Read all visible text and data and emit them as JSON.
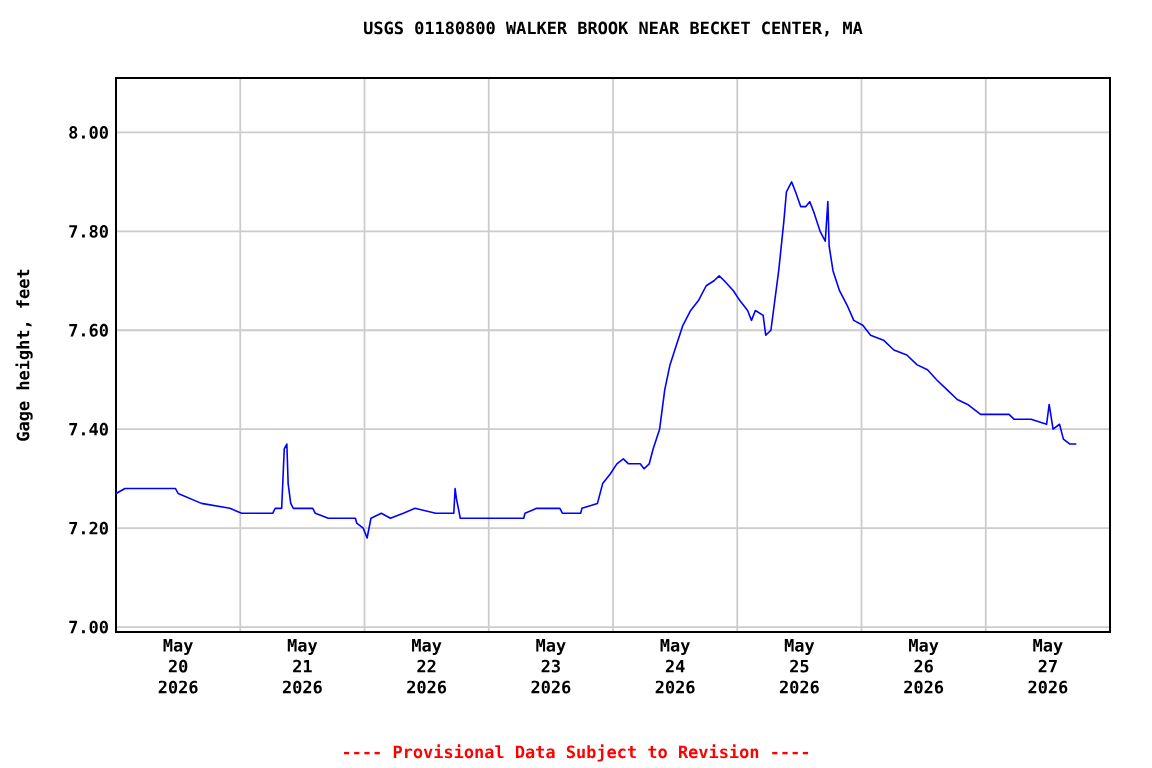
{
  "chart_data": {
    "type": "line",
    "title": "USGS 01180800 WALKER BROOK NEAR BECKET CENTER, MA",
    "ylabel": "Gage height, feet",
    "annotations": [
      "---- Provisional Data Subject to Revision ----"
    ],
    "x": [
      "2026-05-20T00:00",
      "2026-05-20T01:45",
      "2026-05-20T11:30",
      "2026-05-20T12:00",
      "2026-05-20T14:15",
      "2026-05-20T16:30",
      "2026-05-20T22:00",
      "2026-05-21T00:15",
      "2026-05-21T06:15",
      "2026-05-21T06:45",
      "2026-05-21T08:00",
      "2026-05-21T08:30",
      "2026-05-21T09:00",
      "2026-05-21T09:15",
      "2026-05-21T09:45",
      "2026-05-21T10:15",
      "2026-05-21T14:00",
      "2026-05-21T14:30",
      "2026-05-21T17:00",
      "2026-05-21T22:15",
      "2026-05-21T22:30",
      "2026-05-21T23:45",
      "2026-05-22T00:30",
      "2026-05-22T01:15",
      "2026-05-22T03:15",
      "2026-05-22T05:00",
      "2026-05-22T07:30",
      "2026-05-22T09:45",
      "2026-05-22T13:45",
      "2026-05-22T17:15",
      "2026-05-22T17:30",
      "2026-05-22T17:45",
      "2026-05-22T18:30",
      "2026-05-23T06:45",
      "2026-05-23T07:00",
      "2026-05-23T09:15",
      "2026-05-23T13:45",
      "2026-05-23T14:15",
      "2026-05-23T17:45",
      "2026-05-23T18:00",
      "2026-05-23T21:00",
      "2026-05-23T22:00",
      "2026-05-23T23:30",
      "2026-05-24T00:45",
      "2026-05-24T02:00",
      "2026-05-24T03:00",
      "2026-05-24T05:15",
      "2026-05-24T06:00",
      "2026-05-24T07:00",
      "2026-05-24T07:45",
      "2026-05-24T09:00",
      "2026-05-24T10:00",
      "2026-05-24T11:00",
      "2026-05-24T12:15",
      "2026-05-24T13:30",
      "2026-05-24T15:00",
      "2026-05-24T16:30",
      "2026-05-24T18:00",
      "2026-05-24T19:30",
      "2026-05-24T20:30",
      "2026-05-24T21:30",
      "2026-05-24T23:15",
      "2026-05-25T00:30",
      "2026-05-25T02:00",
      "2026-05-25T02:45",
      "2026-05-25T03:30",
      "2026-05-25T05:00",
      "2026-05-25T05:30",
      "2026-05-25T06:30",
      "2026-05-25T07:15",
      "2026-05-25T08:00",
      "2026-05-25T09:00",
      "2026-05-25T09:30",
      "2026-05-25T10:30",
      "2026-05-25T11:15",
      "2026-05-25T12:15",
      "2026-05-25T13:15",
      "2026-05-25T14:00",
      "2026-05-25T14:45",
      "2026-05-25T16:00",
      "2026-05-25T17:00",
      "2026-05-25T17:30",
      "2026-05-25T17:45",
      "2026-05-25T18:30",
      "2026-05-25T19:45",
      "2026-05-25T21:15",
      "2026-05-25T22:30",
      "2026-05-26T00:15",
      "2026-05-26T01:45",
      "2026-05-26T04:15",
      "2026-05-26T06:15",
      "2026-05-26T08:45",
      "2026-05-26T10:45",
      "2026-05-26T12:45",
      "2026-05-26T14:30",
      "2026-05-26T16:30",
      "2026-05-26T18:30",
      "2026-05-26T20:30",
      "2026-05-26T23:00",
      "2026-05-27T04:30",
      "2026-05-27T05:30",
      "2026-05-27T08:45",
      "2026-05-27T11:45",
      "2026-05-27T12:15",
      "2026-05-27T13:00",
      "2026-05-27T14:15",
      "2026-05-27T15:00",
      "2026-05-27T16:15",
      "2026-05-27T17:30"
    ],
    "series": [
      {
        "color": "#0000ff",
        "values": [
          7.27,
          7.28,
          7.28,
          7.27,
          7.26,
          7.25,
          7.24,
          7.23,
          7.23,
          7.24,
          7.24,
          7.36,
          7.37,
          7.29,
          7.25,
          7.24,
          7.24,
          7.23,
          7.22,
          7.22,
          7.21,
          7.2,
          7.18,
          7.22,
          7.23,
          7.22,
          7.23,
          7.24,
          7.23,
          7.23,
          7.28,
          7.26,
          7.22,
          7.22,
          7.23,
          7.24,
          7.24,
          7.23,
          7.23,
          7.24,
          7.25,
          7.29,
          7.31,
          7.33,
          7.34,
          7.33,
          7.33,
          7.32,
          7.33,
          7.36,
          7.4,
          7.48,
          7.53,
          7.57,
          7.61,
          7.64,
          7.66,
          7.69,
          7.7,
          7.71,
          7.7,
          7.68,
          7.66,
          7.64,
          7.62,
          7.64,
          7.63,
          7.59,
          7.6,
          7.66,
          7.72,
          7.82,
          7.88,
          7.9,
          7.88,
          7.85,
          7.85,
          7.86,
          7.84,
          7.8,
          7.78,
          7.86,
          7.77,
          7.72,
          7.68,
          7.65,
          7.62,
          7.61,
          7.59,
          7.58,
          7.56,
          7.55,
          7.53,
          7.52,
          7.5,
          7.48,
          7.46,
          7.45,
          7.43,
          7.43,
          7.42,
          7.42,
          7.41,
          7.45,
          7.4,
          7.41,
          7.38,
          7.37,
          7.37
        ]
      }
    ],
    "xlim": [
      "2026-05-20T00:00",
      "2026-05-28T00:00"
    ],
    "xticks": [
      {
        "value": "2026-05-20T12:00",
        "label": "May 20 2026"
      },
      {
        "value": "2026-05-21T12:00",
        "label": "May 21 2026"
      },
      {
        "value": "2026-05-22T12:00",
        "label": "May 22 2026"
      },
      {
        "value": "2026-05-23T12:00",
        "label": "May 23 2026"
      },
      {
        "value": "2026-05-24T12:00",
        "label": "May 24 2026"
      },
      {
        "value": "2026-05-25T12:00",
        "label": "May 25 2026"
      },
      {
        "value": "2026-05-26T12:00",
        "label": "May 26 2026"
      },
      {
        "value": "2026-05-27T12:00",
        "label": "May 27 2026"
      },
      {
        "value": "2026-05-21T00:00",
        "label": null
      },
      {
        "value": "2026-05-22T00:00",
        "label": null
      },
      {
        "value": "2026-05-23T00:00",
        "label": null
      },
      {
        "value": "2026-05-24T00:00",
        "label": null
      },
      {
        "value": "2026-05-25T00:00",
        "label": null
      },
      {
        "value": "2026-05-26T00:00",
        "label": null
      },
      {
        "value": "2026-05-27T00:00",
        "label": null
      }
    ],
    "ylim": [
      6.99,
      8.11
    ],
    "yticks": [
      {
        "value": 7.0,
        "label": "7.00"
      },
      {
        "value": 7.2,
        "label": "7.20"
      },
      {
        "value": 7.4,
        "label": "7.40"
      },
      {
        "value": 7.6,
        "label": "7.60"
      },
      {
        "value": 7.8,
        "label": "7.80"
      },
      {
        "value": 8.0,
        "label": "8.00"
      }
    ],
    "grid": true,
    "marker": "none",
    "line_style": "solid"
  }
}
